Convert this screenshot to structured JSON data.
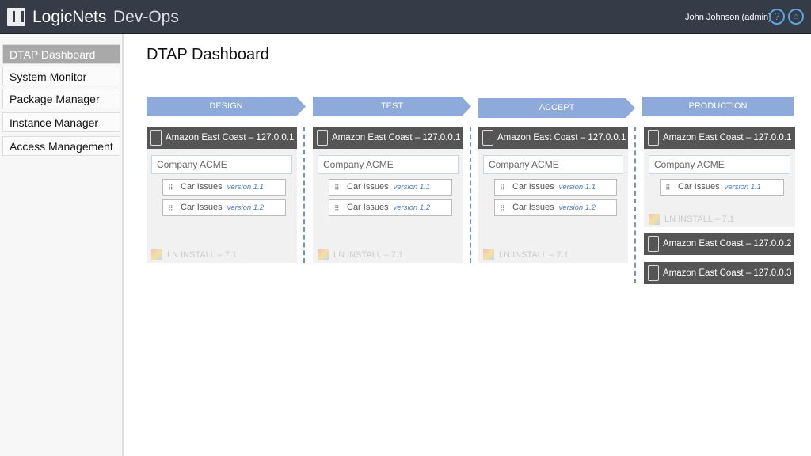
{
  "header": {
    "brand": "LogicNets",
    "app": "Dev-Ops",
    "user": "John Johnson (admin)",
    "help_icon": "?",
    "home_icon": "home-icon"
  },
  "sidebar": {
    "items": [
      {
        "label": "DTAP Dashboard",
        "active": true
      },
      {
        "label": "System Monitor"
      },
      {
        "label": "Package Manager"
      },
      {
        "label": "Instance Manager"
      },
      {
        "label": "Access Management"
      }
    ]
  },
  "page_title": "DTAP Dashboard",
  "colors": {
    "stage": "#8eaadb",
    "server": "#555555",
    "version": "#4a7cc2"
  },
  "stages": [
    {
      "label": "DESIGN",
      "server": "Amazon East Coast – 127.0.0.1",
      "company": "Company ACME",
      "packages": [
        {
          "name": "Car Issues",
          "version": "version 1.1"
        },
        {
          "name": "Car Issues",
          "version": "version 1.2"
        }
      ],
      "install": "LN INSTALL – 7.1"
    },
    {
      "label": "TEST",
      "server": "Amazon East Coast – 127.0.0.1",
      "company": "Company ACME",
      "packages": [
        {
          "name": "Car Issues",
          "version": "version 1.1"
        },
        {
          "name": "Car Issues",
          "version": "version 1.2"
        }
      ],
      "install": "LN INSTALL – 7.1"
    },
    {
      "label": "ACCEPT",
      "server": "Amazon East Coast – 127.0.0.1",
      "company": "Company ACME",
      "packages": [
        {
          "name": "Car Issues",
          "version": "version 1.1"
        },
        {
          "name": "Car Issues",
          "version": "version 1.2"
        }
      ],
      "install": "LN INSTALL – 7.1"
    },
    {
      "label": "PRODUCTION",
      "server": "Amazon East Coast – 127.0.0.1",
      "company": "Company ACME",
      "packages": [
        {
          "name": "Car Issues",
          "version": "version 1.1"
        }
      ],
      "install": "LN INSTALL – 7.1",
      "extra_servers": [
        "Amazon East Coast – 127.0.0.2",
        "Amazon East Coast – 127.0.0.3"
      ]
    }
  ]
}
